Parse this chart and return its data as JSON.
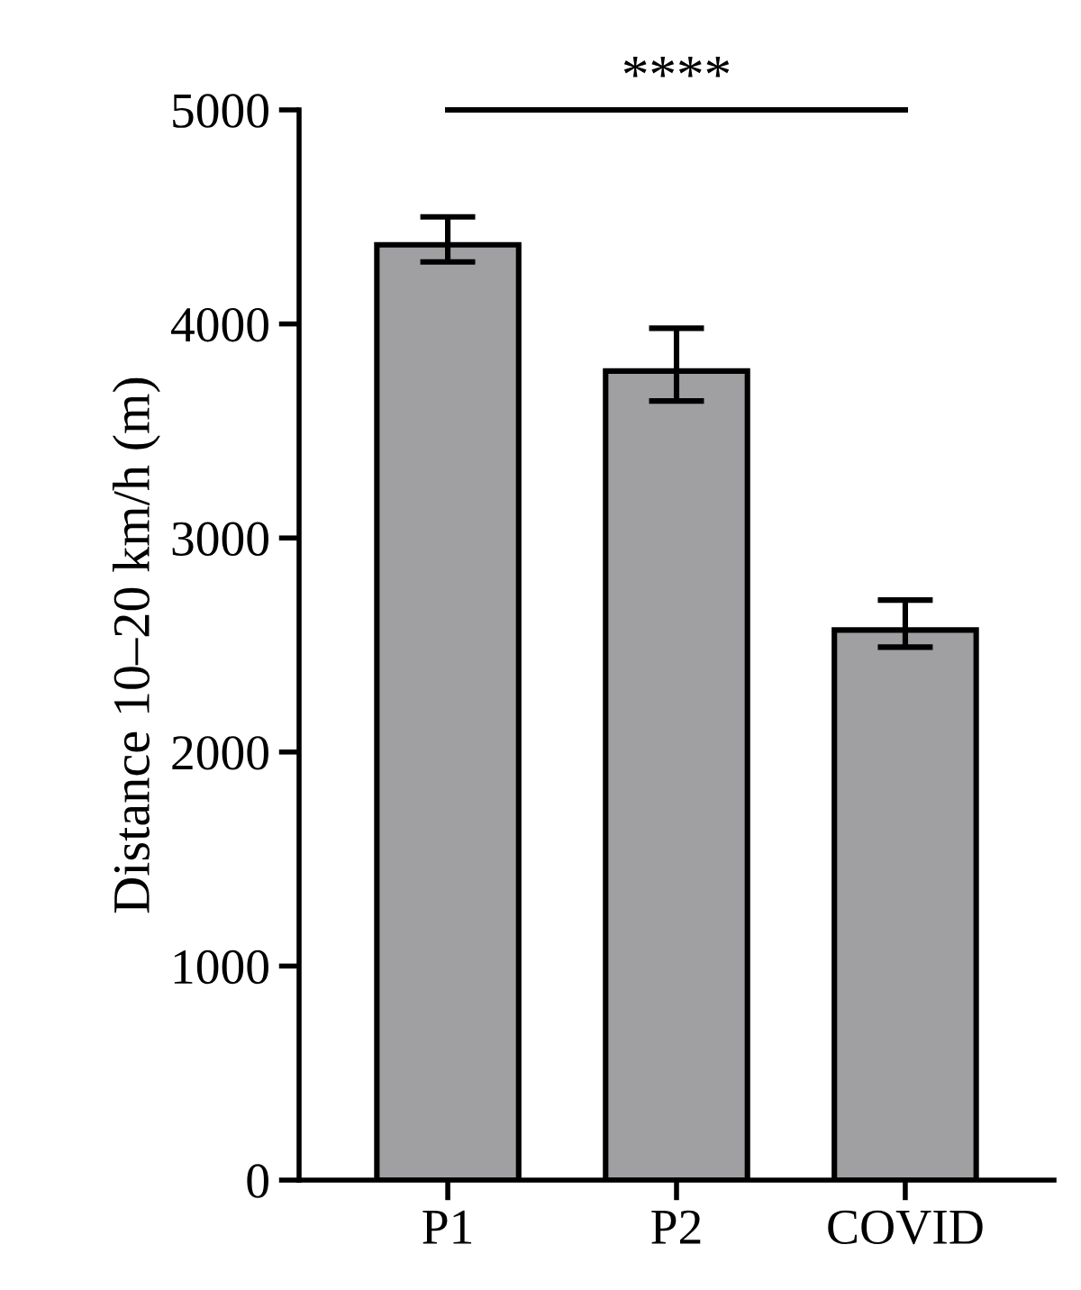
{
  "chart_data": {
    "type": "bar",
    "ylabel": "Distance 10–20 km/h (m)",
    "categories": [
      "P1",
      "P2",
      "COVID"
    ],
    "values": [
      4370,
      3780,
      2570
    ],
    "errors": [
      [
        4290,
        4500
      ],
      [
        3640,
        3980
      ],
      [
        2490,
        2710
      ]
    ],
    "color": "#a0a0a2",
    "ylim": [
      0,
      5000
    ],
    "yticks": [
      0,
      1000,
      2000,
      3000,
      4000,
      5000
    ],
    "grid": false,
    "annotations": [
      "****"
    ]
  }
}
